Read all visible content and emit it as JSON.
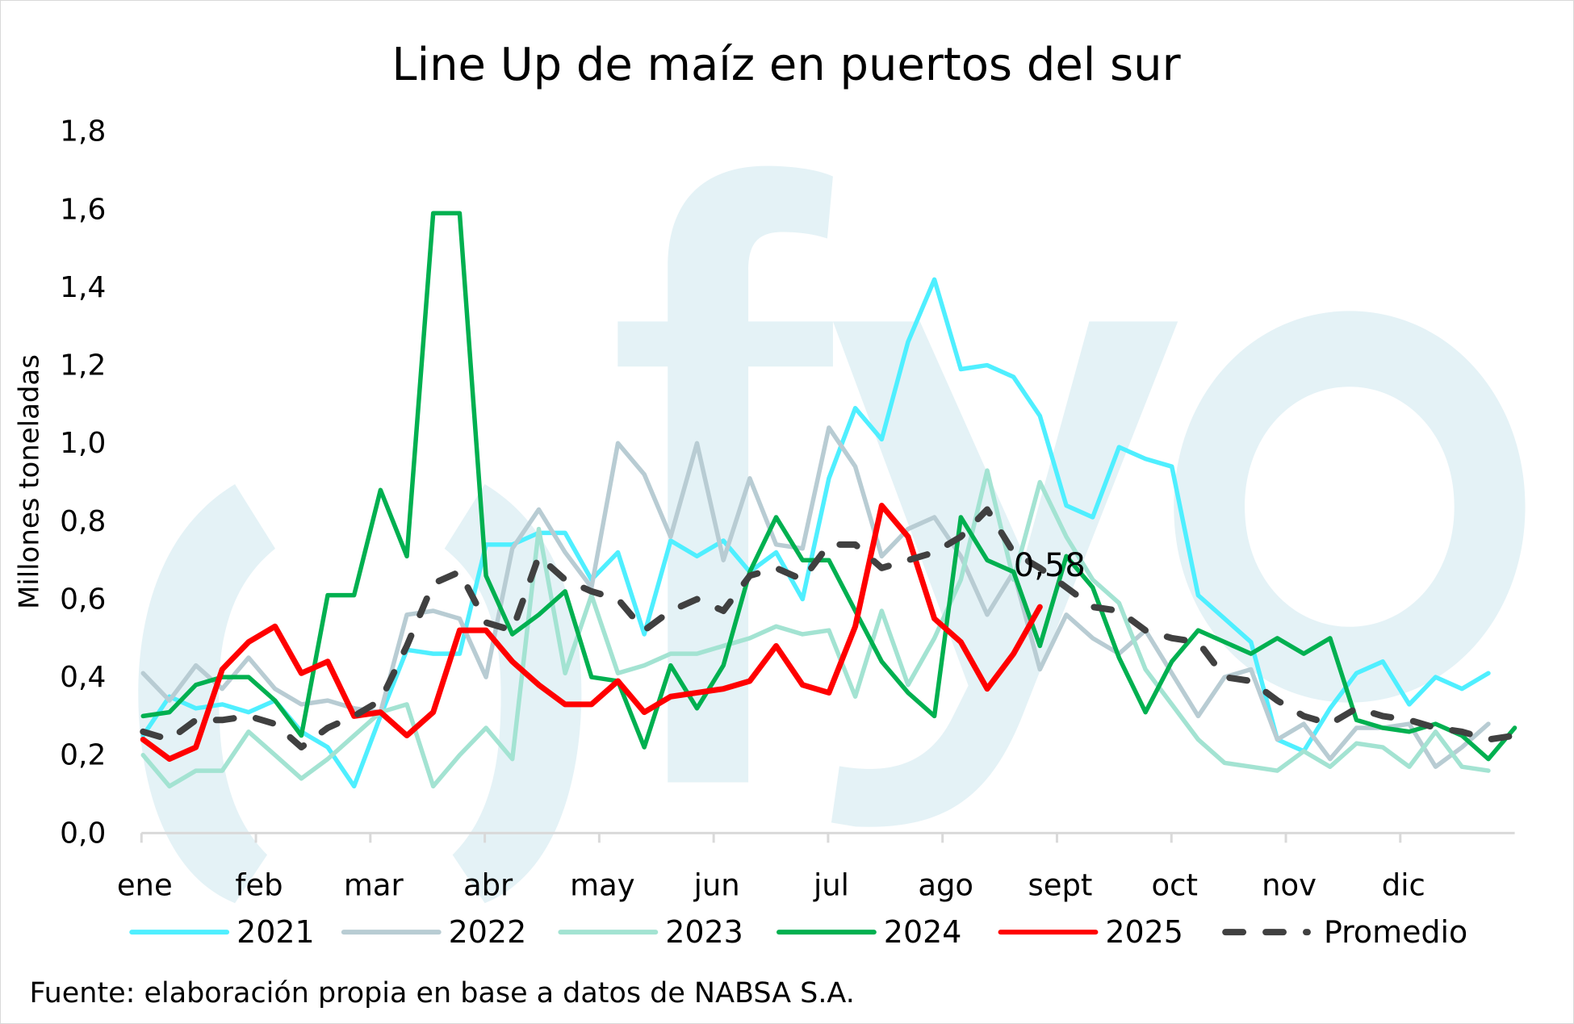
{
  "chart_data": {
    "type": "line",
    "title": "Line Up de maíz en puertos del sur",
    "ylabel": "Millones toneladas",
    "xlabel": "",
    "ylim": [
      0,
      1.8
    ],
    "yticks": [
      "0,0",
      "0,2",
      "0,4",
      "0,6",
      "0,8",
      "1,0",
      "1,2",
      "1,4",
      "1,6",
      "1,8"
    ],
    "x_tick_labels": [
      "ene",
      "feb",
      "mar",
      "abr",
      "may",
      "jun",
      "jul",
      "ago",
      "sept",
      "oct",
      "nov",
      "dic"
    ],
    "x_unit": "week of year",
    "grid": false,
    "legend_position": "bottom",
    "annotation": {
      "text": "0,58",
      "series": "2025",
      "week_index": 34
    },
    "source": "Fuente: elaboración propia en base a datos de NABSA S.A.",
    "watermark": "fyo",
    "series": [
      {
        "name": "2021",
        "color": "#4fefff",
        "dashed": false,
        "values": [
          0.25,
          0.35,
          0.32,
          0.33,
          0.31,
          0.34,
          0.26,
          0.22,
          0.12,
          0.3,
          0.47,
          0.46,
          0.46,
          0.74,
          0.74,
          0.77,
          0.77,
          0.65,
          0.72,
          0.51,
          0.75,
          0.71,
          0.75,
          0.67,
          0.72,
          0.6,
          0.91,
          1.09,
          1.01,
          1.26,
          1.42,
          1.19,
          1.2,
          1.17,
          1.07,
          0.84,
          0.81,
          0.99,
          0.96,
          0.94,
          0.61,
          0.55,
          0.49,
          0.24,
          0.21,
          0.32,
          0.41,
          0.44,
          0.33,
          0.4,
          0.37,
          0.41
        ]
      },
      {
        "name": "2022",
        "color": "#b8ccd3",
        "dashed": false,
        "values": [
          0.41,
          0.34,
          0.43,
          0.37,
          0.45,
          0.37,
          0.33,
          0.34,
          0.32,
          0.31,
          0.56,
          0.57,
          0.55,
          0.4,
          0.73,
          0.83,
          0.72,
          0.63,
          1.0,
          0.92,
          0.76,
          1.0,
          0.7,
          0.91,
          0.74,
          0.73,
          1.04,
          0.94,
          0.71,
          0.78,
          0.81,
          0.71,
          0.56,
          0.67,
          0.42,
          0.56,
          0.5,
          0.46,
          0.52,
          0.41,
          0.3,
          0.4,
          0.42,
          0.24,
          0.28,
          0.19,
          0.27,
          0.27,
          0.28,
          0.17,
          0.22,
          0.28
        ]
      },
      {
        "name": "2023",
        "color": "#a3e3d2",
        "dashed": false,
        "values": [
          0.2,
          0.12,
          0.16,
          0.16,
          0.26,
          0.2,
          0.14,
          0.19,
          0.25,
          0.31,
          0.33,
          0.12,
          0.2,
          0.27,
          0.19,
          0.78,
          0.41,
          0.61,
          0.41,
          0.43,
          0.46,
          0.46,
          0.48,
          0.5,
          0.53,
          0.51,
          0.52,
          0.35,
          0.57,
          0.38,
          0.5,
          0.65,
          0.93,
          0.65,
          0.9,
          0.76,
          0.65,
          0.59,
          0.42,
          0.33,
          0.24,
          0.18,
          0.17,
          0.16,
          0.21,
          0.17,
          0.23,
          0.22,
          0.17,
          0.26,
          0.17,
          0.16
        ]
      },
      {
        "name": "2024",
        "color": "#00b050",
        "dashed": false,
        "values": [
          0.3,
          0.31,
          0.38,
          0.4,
          0.4,
          0.34,
          0.25,
          0.61,
          0.61,
          0.88,
          0.71,
          1.59,
          1.59,
          0.66,
          0.51,
          0.56,
          0.62,
          0.4,
          0.39,
          0.22,
          0.43,
          0.32,
          0.43,
          0.67,
          0.81,
          0.7,
          0.7,
          0.57,
          0.44,
          0.36,
          0.3,
          0.81,
          0.7,
          0.67,
          0.48,
          0.71,
          0.63,
          0.45,
          0.31,
          0.44,
          0.52,
          0.49,
          0.46,
          0.5,
          0.46,
          0.5,
          0.29,
          0.27,
          0.26,
          0.28,
          0.25,
          0.19,
          0.27
        ]
      },
      {
        "name": "2025",
        "color": "#ff0000",
        "dashed": false,
        "values": [
          0.24,
          0.19,
          0.22,
          0.42,
          0.49,
          0.53,
          0.41,
          0.44,
          0.3,
          0.31,
          0.25,
          0.31,
          0.52,
          0.52,
          0.44,
          0.38,
          0.33,
          0.33,
          0.39,
          0.31,
          0.35,
          0.36,
          0.37,
          0.39,
          0.48,
          0.38,
          0.36,
          0.53,
          0.84,
          0.76,
          0.55,
          0.49,
          0.37,
          0.46,
          0.58
        ]
      },
      {
        "name": "Promedio",
        "color": "#404040",
        "dashed": true,
        "values": [
          0.26,
          0.24,
          0.29,
          0.29,
          0.3,
          0.28,
          0.22,
          0.27,
          0.3,
          0.34,
          0.48,
          0.64,
          0.67,
          0.54,
          0.52,
          0.71,
          0.65,
          0.62,
          0.6,
          0.52,
          0.57,
          0.6,
          0.57,
          0.66,
          0.68,
          0.65,
          0.74,
          0.74,
          0.68,
          0.7,
          0.72,
          0.76,
          0.83,
          0.72,
          0.68,
          0.63,
          0.58,
          0.57,
          0.52,
          0.5,
          0.49,
          0.4,
          0.39,
          0.34,
          0.3,
          0.28,
          0.32,
          0.3,
          0.29,
          0.27,
          0.26,
          0.24,
          0.25
        ]
      }
    ]
  }
}
